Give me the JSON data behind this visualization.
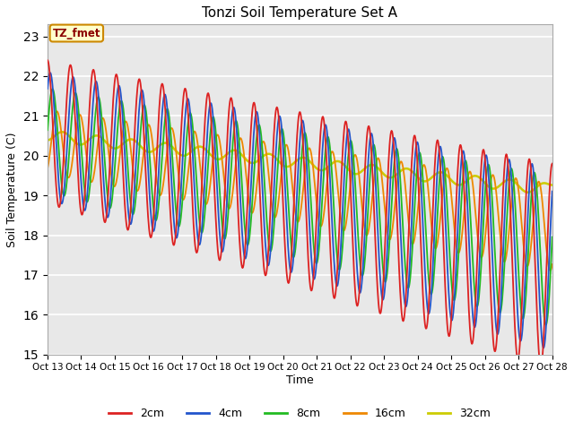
{
  "title": "Tonzi Soil Temperature Set A",
  "ylabel": "Soil Temperature (C)",
  "xlabel": "Time",
  "legend_label": "TZ_fmet",
  "ylim": [
    15.0,
    23.3
  ],
  "yticks": [
    15.0,
    16.0,
    17.0,
    18.0,
    19.0,
    20.0,
    21.0,
    22.0,
    23.0
  ],
  "bg_color": "#e8e8e8",
  "fig_color": "#ffffff",
  "colors": {
    "2cm": "#dd2222",
    "4cm": "#2255cc",
    "8cm": "#22bb22",
    "16cm": "#ee8800",
    "32cm": "#cccc00"
  },
  "line_widths": {
    "2cm": 1.3,
    "4cm": 1.3,
    "8cm": 1.3,
    "16cm": 1.3,
    "32cm": 1.8
  },
  "xtick_labels": [
    "Oct 13",
    "Oct 14",
    "Oct 15",
    "Oct 16",
    "Oct 17",
    "Oct 18",
    "Oct 19",
    "Oct 20",
    "Oct 21",
    "Oct 22",
    "Oct 23",
    "Oct 24",
    "Oct 25",
    "Oct 26",
    "Oct 27",
    "Oct 28"
  ],
  "num_points": 1000
}
